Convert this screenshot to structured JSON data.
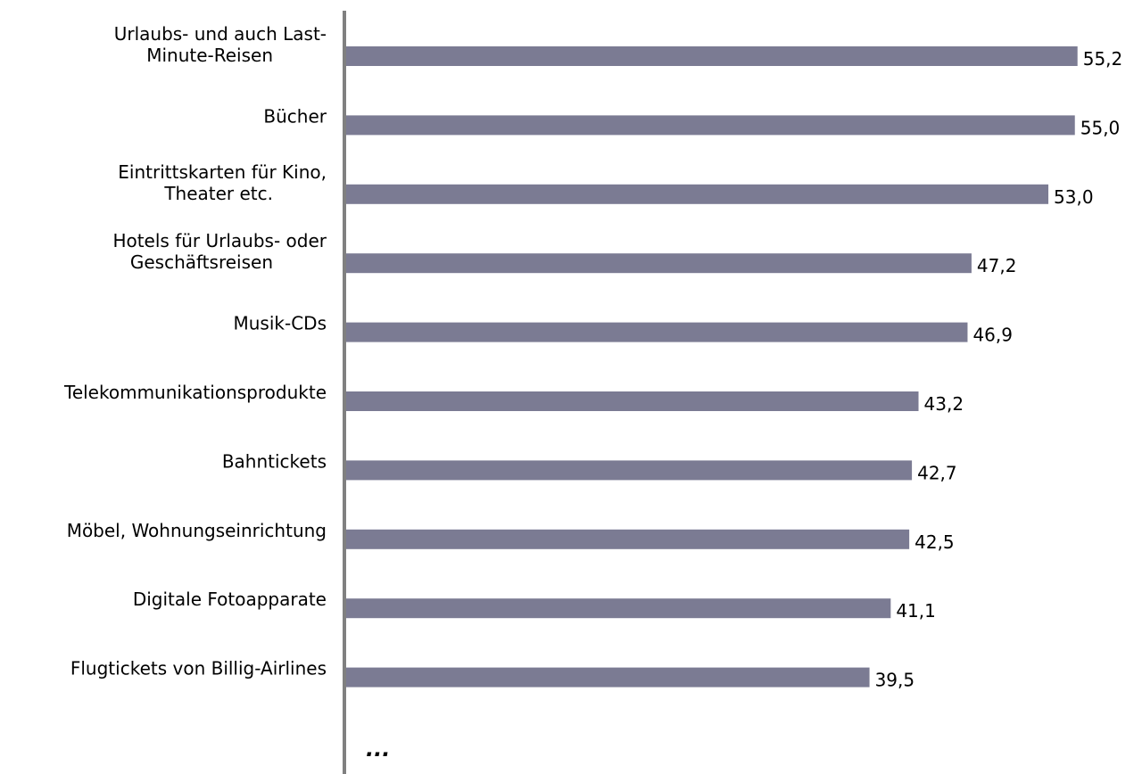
{
  "chart_data": {
    "type": "bar",
    "orientation": "horizontal",
    "categories": [
      [
        "Urlaubs- und auch Last-",
        "Minute-Reisen"
      ],
      [
        "Bücher"
      ],
      [
        "Eintrittskarten für Kino,",
        "Theater etc."
      ],
      [
        "Hotels für Urlaubs- oder",
        "Geschäftsreisen"
      ],
      [
        "Musik-CDs"
      ],
      [
        "Telekommunikationsprodukte"
      ],
      [
        "Bahntickets"
      ],
      [
        "Möbel, Wohnungseinrichtung"
      ],
      [
        "Digitale Fotoapparate"
      ],
      [
        "Flugtickets von Billig-Airlines"
      ]
    ],
    "values": [
      55.2,
      55.0,
      53.0,
      47.2,
      46.9,
      43.2,
      42.7,
      42.5,
      41.1,
      39.5
    ],
    "value_labels": [
      "55,2",
      "55,0",
      "53,0",
      "47,2",
      "46,9",
      "43,2",
      "42,7",
      "42,5",
      "41,1",
      "39,5"
    ],
    "continuation_label": "...",
    "xlim": [
      0,
      57
    ],
    "grid": false,
    "legend": "none",
    "bar_color": "#7b7b93",
    "axis_color": "#808080"
  }
}
